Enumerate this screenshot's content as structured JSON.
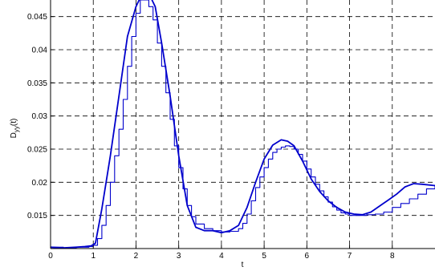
{
  "chart_data": {
    "type": "line",
    "xlabel": "t",
    "ylabel": "D_yy(t)",
    "ylabel_main": "D",
    "ylabel_sub": "yy",
    "ylabel_tail": "(t)",
    "xlim": [
      0,
      9
    ],
    "ylim": [
      0.01,
      0.0475
    ],
    "xticks": [
      0,
      1,
      2,
      3,
      4,
      5,
      6,
      7,
      8
    ],
    "xtick_labels": [
      "0",
      "1",
      "2",
      "3",
      "4",
      "5",
      "6",
      "7",
      "8"
    ],
    "yticks": [
      0.015,
      0.02,
      0.025,
      0.03,
      0.035,
      0.04,
      0.045
    ],
    "ytick_labels": [
      "0.015",
      "0.02",
      "0.025",
      "0.03",
      "0.035",
      "0.04",
      "0.045"
    ],
    "grid": true,
    "line_color": "#0000cc",
    "series": [
      {
        "style": "smooth",
        "x": [
          0,
          0.3,
          0.6,
          0.8,
          0.95,
          1.05,
          1.2,
          1.4,
          1.6,
          1.8,
          2.0,
          2.15,
          2.3,
          2.45,
          2.6,
          2.8,
          3.0,
          3.2,
          3.4,
          3.6,
          3.8,
          4.0,
          4.2,
          4.4,
          4.6,
          4.8,
          5.0,
          5.2,
          5.4,
          5.55,
          5.7,
          5.9,
          6.1,
          6.3,
          6.5,
          6.7,
          6.9,
          7.1,
          7.3,
          7.5,
          7.7,
          7.9,
          8.1,
          8.3,
          8.5,
          8.7,
          9.0
        ],
        "y": [
          0.0102,
          0.0101,
          0.0102,
          0.0103,
          0.0104,
          0.0108,
          0.016,
          0.024,
          0.033,
          0.042,
          0.0465,
          0.0485,
          0.0485,
          0.0465,
          0.041,
          0.033,
          0.024,
          0.0165,
          0.0132,
          0.0127,
          0.0127,
          0.0124,
          0.0127,
          0.0135,
          0.0162,
          0.02,
          0.0235,
          0.0256,
          0.0264,
          0.0262,
          0.0255,
          0.0232,
          0.0205,
          0.0186,
          0.0172,
          0.0162,
          0.0155,
          0.0152,
          0.0151,
          0.0155,
          0.0164,
          0.0173,
          0.0182,
          0.0193,
          0.0198,
          0.0197,
          0.0195
        ]
      },
      {
        "style": "staircase",
        "x": [
          0,
          0.3,
          0.6,
          0.9,
          1.0,
          1.1,
          1.2,
          1.3,
          1.4,
          1.5,
          1.6,
          1.7,
          1.8,
          1.9,
          2.0,
          2.1,
          2.2,
          2.3,
          2.4,
          2.5,
          2.6,
          2.7,
          2.8,
          2.9,
          3.0,
          3.1,
          3.2,
          3.3,
          3.4,
          3.6,
          3.8,
          4.0,
          4.2,
          4.4,
          4.5,
          4.6,
          4.7,
          4.8,
          4.9,
          5.0,
          5.1,
          5.2,
          5.3,
          5.4,
          5.5,
          5.6,
          5.7,
          5.8,
          5.9,
          6.0,
          6.1,
          6.2,
          6.3,
          6.4,
          6.5,
          6.6,
          6.7,
          6.8,
          6.9,
          7.0,
          7.2,
          7.4,
          7.6,
          7.8,
          8.0,
          8.2,
          8.4,
          8.6,
          8.8,
          9.0
        ],
        "y": [
          0.0102,
          0.0101,
          0.0102,
          0.0103,
          0.0105,
          0.0115,
          0.0135,
          0.0165,
          0.02,
          0.024,
          0.028,
          0.0325,
          0.0375,
          0.042,
          0.0455,
          0.0475,
          0.0475,
          0.0465,
          0.0445,
          0.041,
          0.0375,
          0.0335,
          0.0295,
          0.0255,
          0.0222,
          0.019,
          0.0165,
          0.0148,
          0.0137,
          0.013,
          0.0127,
          0.0125,
          0.0126,
          0.013,
          0.0138,
          0.0152,
          0.0172,
          0.0192,
          0.0208,
          0.0222,
          0.0235,
          0.0245,
          0.025,
          0.0253,
          0.0255,
          0.0254,
          0.025,
          0.0242,
          0.0232,
          0.022,
          0.0208,
          0.0197,
          0.0187,
          0.0178,
          0.017,
          0.0163,
          0.0158,
          0.0154,
          0.0152,
          0.015,
          0.015,
          0.0151,
          0.0152,
          0.0155,
          0.0162,
          0.0168,
          0.0175,
          0.0182,
          0.019,
          0.0196
        ]
      }
    ]
  }
}
